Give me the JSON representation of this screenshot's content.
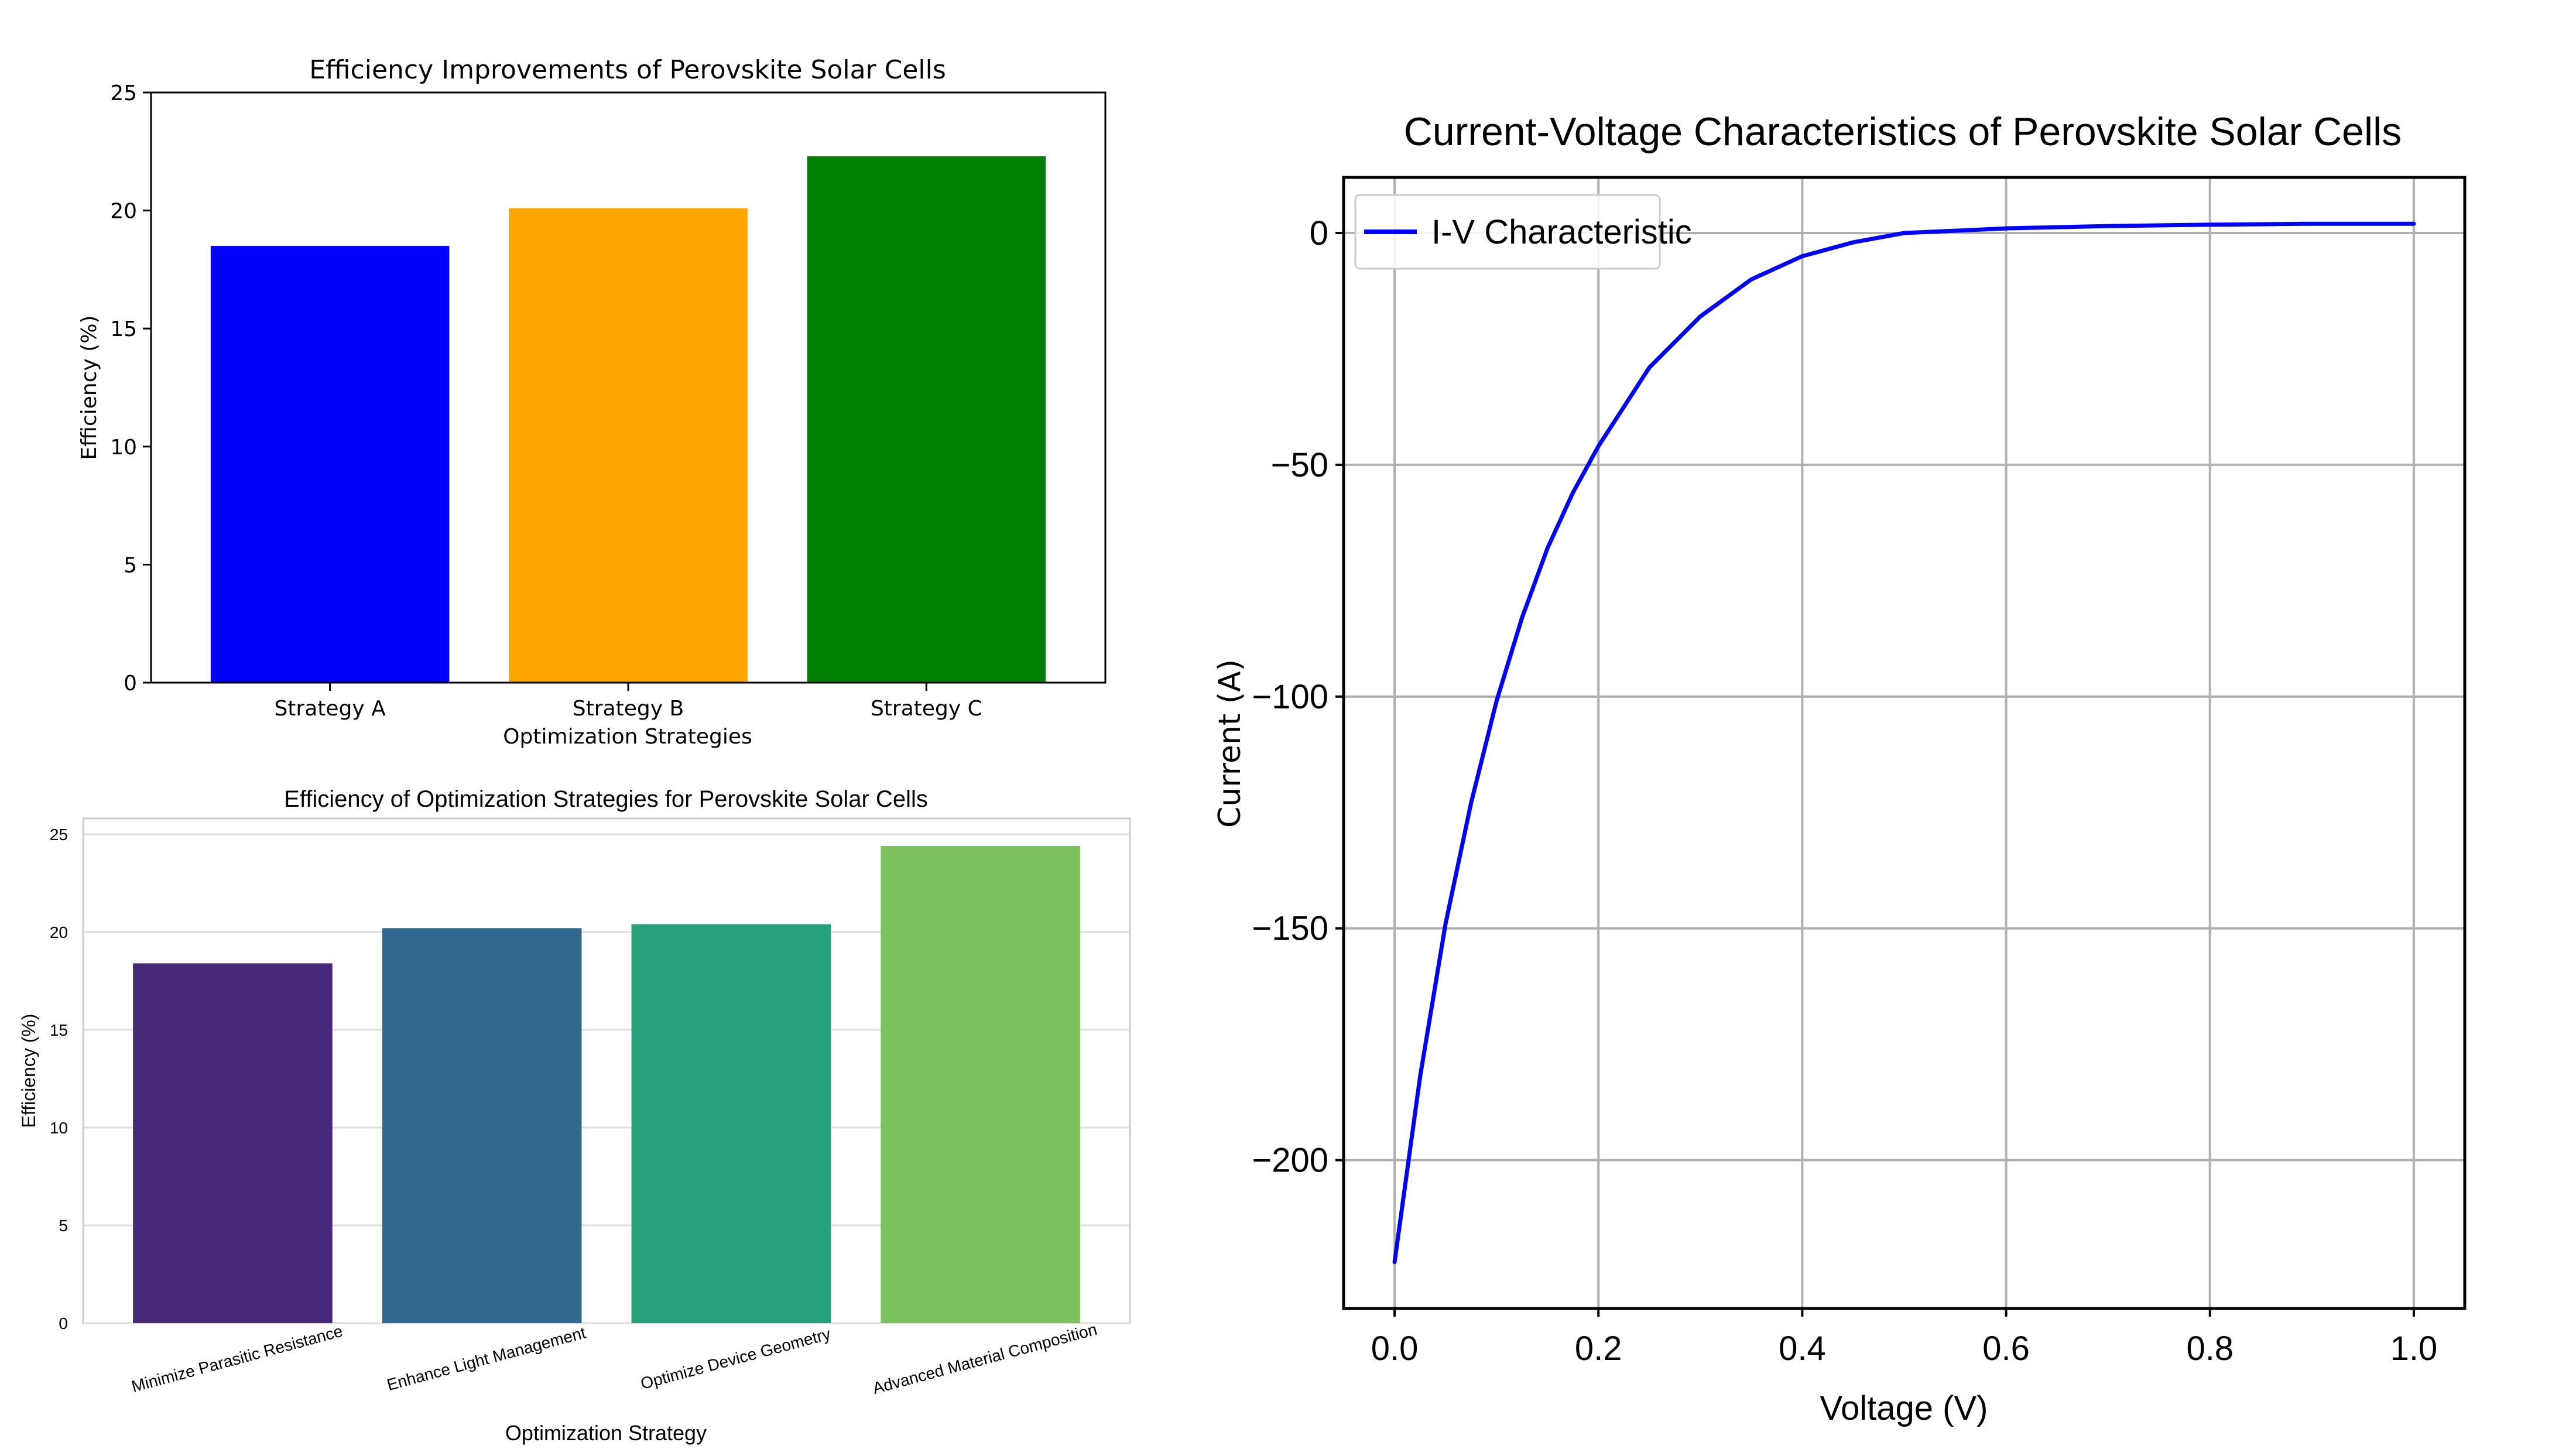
{
  "chart_data": [
    {
      "type": "bar",
      "title": "Efficiency Improvements of Perovskite Solar Cells",
      "xlabel": "Optimization Strategies",
      "ylabel": "Efficiency (%)",
      "categories": [
        "Strategy A",
        "Strategy B",
        "Strategy C"
      ],
      "values": [
        18.5,
        20.1,
        22.3
      ],
      "colors": [
        "#0000ff",
        "#ffa500",
        "#008000"
      ],
      "ylim": [
        0,
        25
      ],
      "yticks": [
        "0",
        "5",
        "10",
        "15",
        "20",
        "25"
      ],
      "grid": false,
      "legend": null
    },
    {
      "type": "bar",
      "title": "Efficiency of Optimization Strategies for Perovskite Solar Cells",
      "xlabel": "Optimization Strategy",
      "ylabel": "Efficiency (%)",
      "categories": [
        "Minimize Parasitic Resistance",
        "Enhance Light Management",
        "Optimize Device Geometry",
        "Advanced Material Composition"
      ],
      "values": [
        18.4,
        20.2,
        20.4,
        24.4
      ],
      "colors": [
        "#482878",
        "#31688e",
        "#26a07a",
        "#7ec25d"
      ],
      "ylim": [
        0,
        25
      ],
      "yticks": [
        "0",
        "5",
        "10",
        "15",
        "20",
        "25"
      ],
      "grid": "y",
      "legend": null
    },
    {
      "type": "line",
      "title": "Current-Voltage Characteristics of Perovskite Solar Cells",
      "xlabel": "Voltage (V)",
      "ylabel": "Current (A)",
      "xlim": [
        -0.05,
        1.05
      ],
      "ylim": [
        -232,
        12
      ],
      "xticks": [
        "0.0",
        "0.2",
        "0.4",
        "0.6",
        "0.8",
        "1.0"
      ],
      "yticks": [
        "0",
        "−50",
        "−100",
        "−150",
        "−200"
      ],
      "grid": true,
      "legend": "upper-left",
      "series": [
        {
          "name": "I-V Characteristic",
          "color": "#0000ff",
          "x": [
            0.0,
            0.025,
            0.05,
            0.075,
            0.1,
            0.125,
            0.15,
            0.175,
            0.2,
            0.25,
            0.3,
            0.35,
            0.4,
            0.45,
            0.5,
            0.55,
            0.6,
            0.7,
            0.8,
            0.9,
            1.0
          ],
          "y": [
            -222,
            -182,
            -149,
            -123,
            -101,
            -83,
            -68,
            -56,
            -46,
            -29,
            -18,
            -10,
            -5,
            -2,
            0,
            0.5,
            1,
            1.5,
            1.8,
            2,
            2
          ]
        }
      ]
    }
  ]
}
